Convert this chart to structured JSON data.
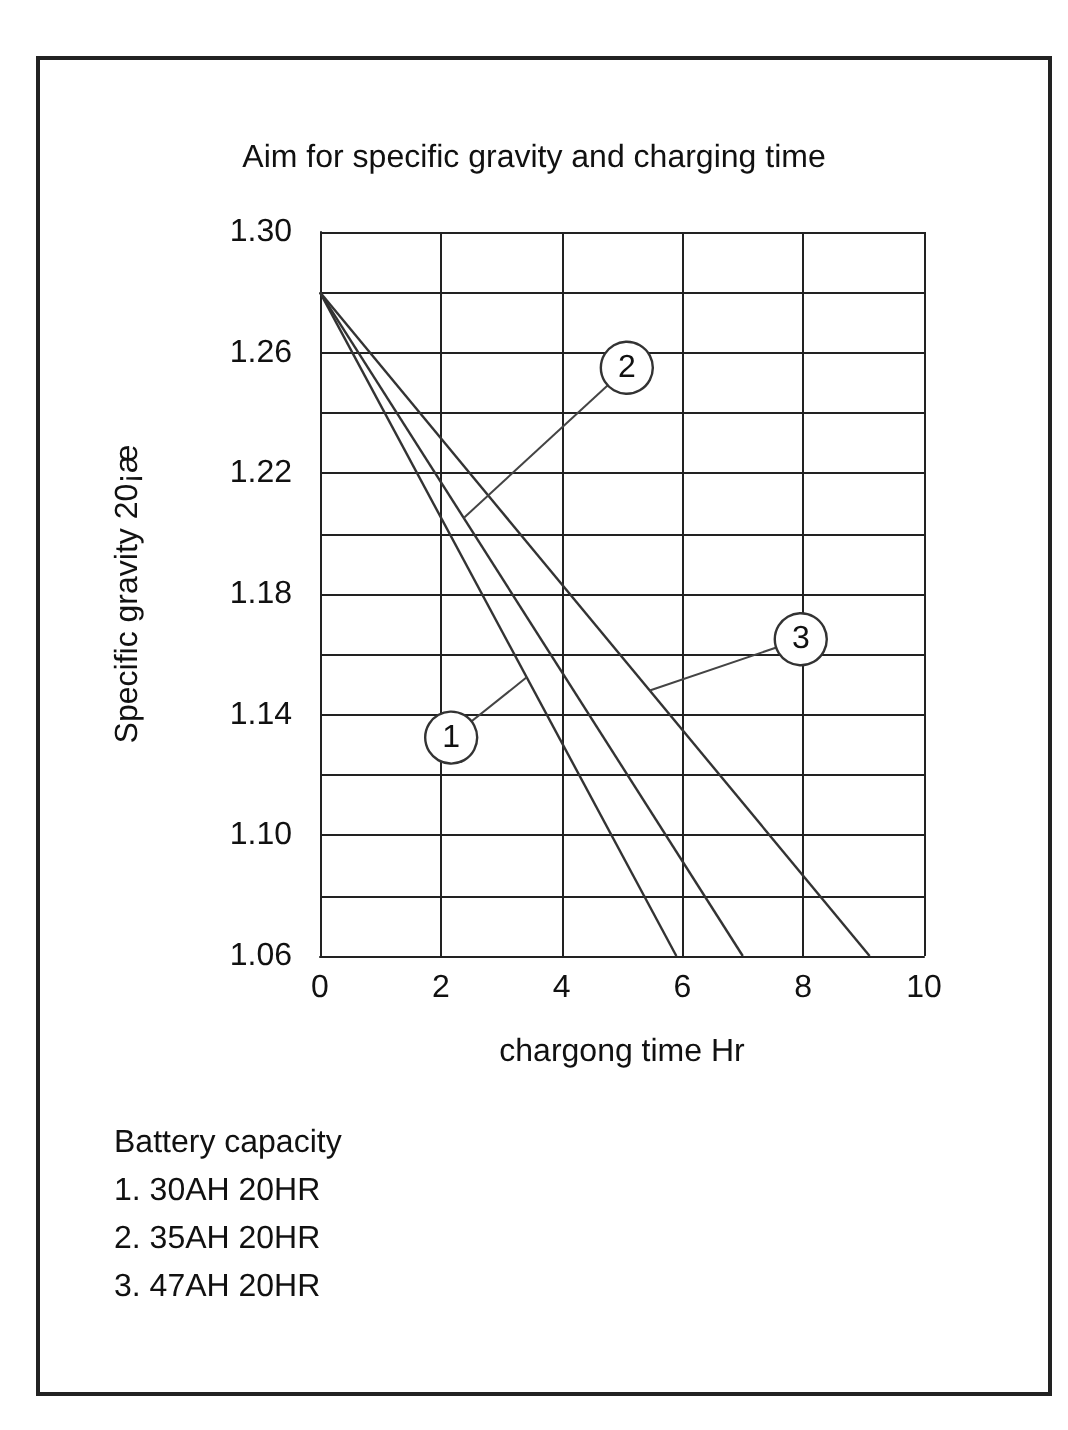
{
  "chart_data": {
    "type": "line",
    "title": "Aim for specific gravity and charging time",
    "xlabel": "chargong time Hr",
    "ylabel": "Specific gravity 20¡æ",
    "legend_title": "Battery capacity",
    "annotations": [
      "1. 30AH 20HR",
      "2. 35AH 20HR",
      "3. 47AH 20HR"
    ],
    "series": [
      {
        "name": "1",
        "color": "#333333",
        "x": [
          0,
          5.9
        ],
        "values": [
          1.28,
          1.06
        ]
      },
      {
        "name": "2",
        "color": "#333333",
        "x": [
          0,
          7.0
        ],
        "values": [
          1.28,
          1.06
        ]
      },
      {
        "name": "3",
        "color": "#333333",
        "x": [
          0,
          9.1
        ],
        "values": [
          1.28,
          1.06
        ]
      }
    ],
    "xlim": [
      0,
      10
    ],
    "xticks": [
      0,
      2,
      4,
      6,
      8,
      10
    ],
    "ylim": [
      1.06,
      1.3
    ],
    "yticks": [
      1.06,
      {
        "value": 1.08,
        "label": null
      },
      "1.10",
      {
        "value": 1.12,
        "label": null
      },
      1.14,
      {
        "value": 1.16,
        "label": null
      },
      1.18,
      {
        "value": 1.2,
        "label": null
      },
      1.22,
      {
        "value": 1.24,
        "label": null
      },
      1.26,
      {
        "value": 1.28,
        "label": null
      },
      "1.30"
    ],
    "grid": true,
    "legend": false,
    "marker": "none",
    "line_style": "solid"
  }
}
